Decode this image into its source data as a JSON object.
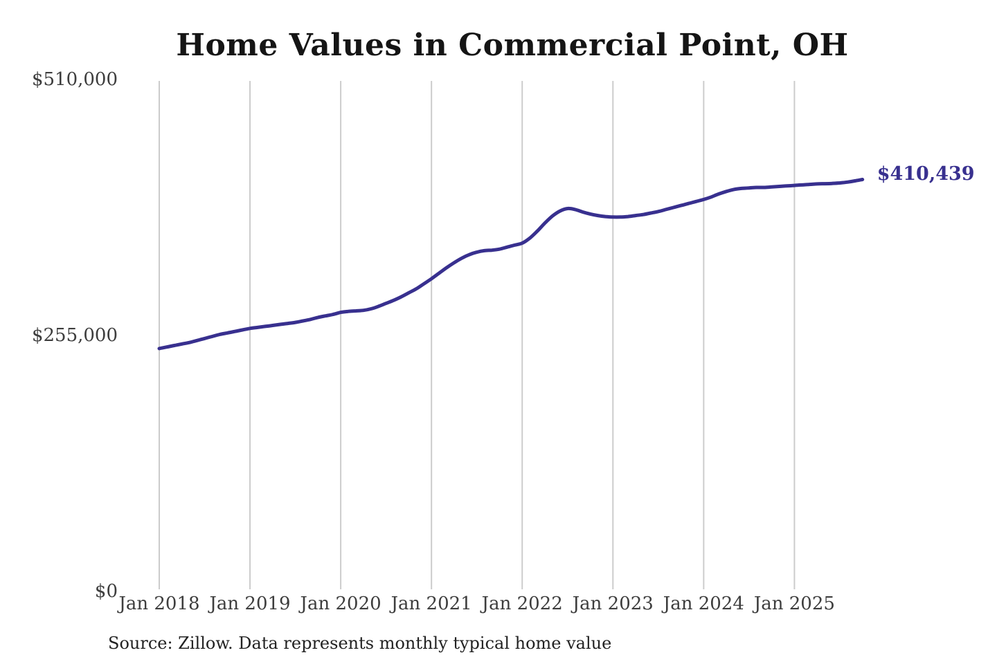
{
  "title": "Home Values in Commercial Point, OH",
  "end_label": "$410,439",
  "source": "Source: Zillow. Data represents monthly typical home value",
  "colors": {
    "accent": "#38308f",
    "grid": "#cccccc",
    "axis_text": "#3d3d3d",
    "title_text": "#151515"
  },
  "y_axis": {
    "ticks": [
      {
        "label": "$510,000",
        "value": 510000
      },
      {
        "label": "$255,000",
        "value": 255000
      },
      {
        "label": "$0",
        "value": 0
      }
    ]
  },
  "x_axis": {
    "ticks": [
      {
        "label": "Jan 2018",
        "month_index": 0
      },
      {
        "label": "Jan 2019",
        "month_index": 12
      },
      {
        "label": "Jan 2020",
        "month_index": 24
      },
      {
        "label": "Jan 2021",
        "month_index": 36
      },
      {
        "label": "Jan 2022",
        "month_index": 48
      },
      {
        "label": "Jan 2023",
        "month_index": 60
      },
      {
        "label": "Jan 2024",
        "month_index": 72
      },
      {
        "label": "Jan 2025",
        "month_index": 84
      }
    ]
  },
  "chart_data": {
    "type": "line",
    "title": "Home Values in Commercial Point, OH",
    "series_name": "Monthly typical home value ($)",
    "ylabel": "",
    "xlabel": "",
    "ylim": [
      0,
      510000
    ],
    "y_ticks": [
      0,
      255000,
      510000
    ],
    "grid": "vertical-only",
    "legend": "none",
    "line_color": "#38308f",
    "annotation": {
      "text": "$410,439",
      "x": "2025-10",
      "value": 410439
    },
    "x": [
      "2018-01",
      "2018-02",
      "2018-03",
      "2018-04",
      "2018-05",
      "2018-06",
      "2018-07",
      "2018-08",
      "2018-09",
      "2018-10",
      "2018-11",
      "2018-12",
      "2019-01",
      "2019-02",
      "2019-03",
      "2019-04",
      "2019-05",
      "2019-06",
      "2019-07",
      "2019-08",
      "2019-09",
      "2019-10",
      "2019-11",
      "2019-12",
      "2020-01",
      "2020-02",
      "2020-03",
      "2020-04",
      "2020-05",
      "2020-06",
      "2020-07",
      "2020-08",
      "2020-09",
      "2020-10",
      "2020-11",
      "2020-12",
      "2021-01",
      "2021-02",
      "2021-03",
      "2021-04",
      "2021-05",
      "2021-06",
      "2021-07",
      "2021-08",
      "2021-09",
      "2021-10",
      "2021-11",
      "2021-12",
      "2022-01",
      "2022-02",
      "2022-03",
      "2022-04",
      "2022-05",
      "2022-06",
      "2022-07",
      "2022-08",
      "2022-09",
      "2022-10",
      "2022-11",
      "2022-12",
      "2023-01",
      "2023-02",
      "2023-03",
      "2023-04",
      "2023-05",
      "2023-06",
      "2023-07",
      "2023-08",
      "2023-09",
      "2023-10",
      "2023-11",
      "2023-12",
      "2024-01",
      "2024-02",
      "2024-03",
      "2024-04",
      "2024-05",
      "2024-06",
      "2024-07",
      "2024-08",
      "2024-09",
      "2024-10",
      "2024-11",
      "2024-12",
      "2025-01",
      "2025-02",
      "2025-03",
      "2025-04",
      "2025-05",
      "2025-06",
      "2025-07",
      "2025-08",
      "2025-09",
      "2025-10"
    ],
    "values": [
      242000,
      243500,
      245000,
      246500,
      248000,
      250000,
      252000,
      254000,
      256000,
      257500,
      259000,
      260500,
      262000,
      263000,
      264000,
      265000,
      266000,
      267000,
      268000,
      269500,
      271000,
      273000,
      274500,
      276000,
      278000,
      279000,
      279500,
      280000,
      281500,
      284000,
      287000,
      290000,
      293500,
      297500,
      301500,
      306500,
      311500,
      317000,
      322500,
      327500,
      332000,
      335500,
      338000,
      339500,
      340000,
      341000,
      343000,
      345000,
      347000,
      352000,
      359000,
      367000,
      374000,
      379000,
      381500,
      380500,
      378000,
      376000,
      374500,
      373500,
      373000,
      373000,
      373500,
      374500,
      375500,
      377000,
      378500,
      380500,
      382500,
      384500,
      386500,
      388500,
      390500,
      393000,
      396000,
      398500,
      400500,
      401500,
      402000,
      402500,
      402500,
      403000,
      403500,
      404000,
      404500,
      405000,
      405500,
      406000,
      406200,
      406500,
      407000,
      407800,
      409000,
      410439
    ]
  }
}
